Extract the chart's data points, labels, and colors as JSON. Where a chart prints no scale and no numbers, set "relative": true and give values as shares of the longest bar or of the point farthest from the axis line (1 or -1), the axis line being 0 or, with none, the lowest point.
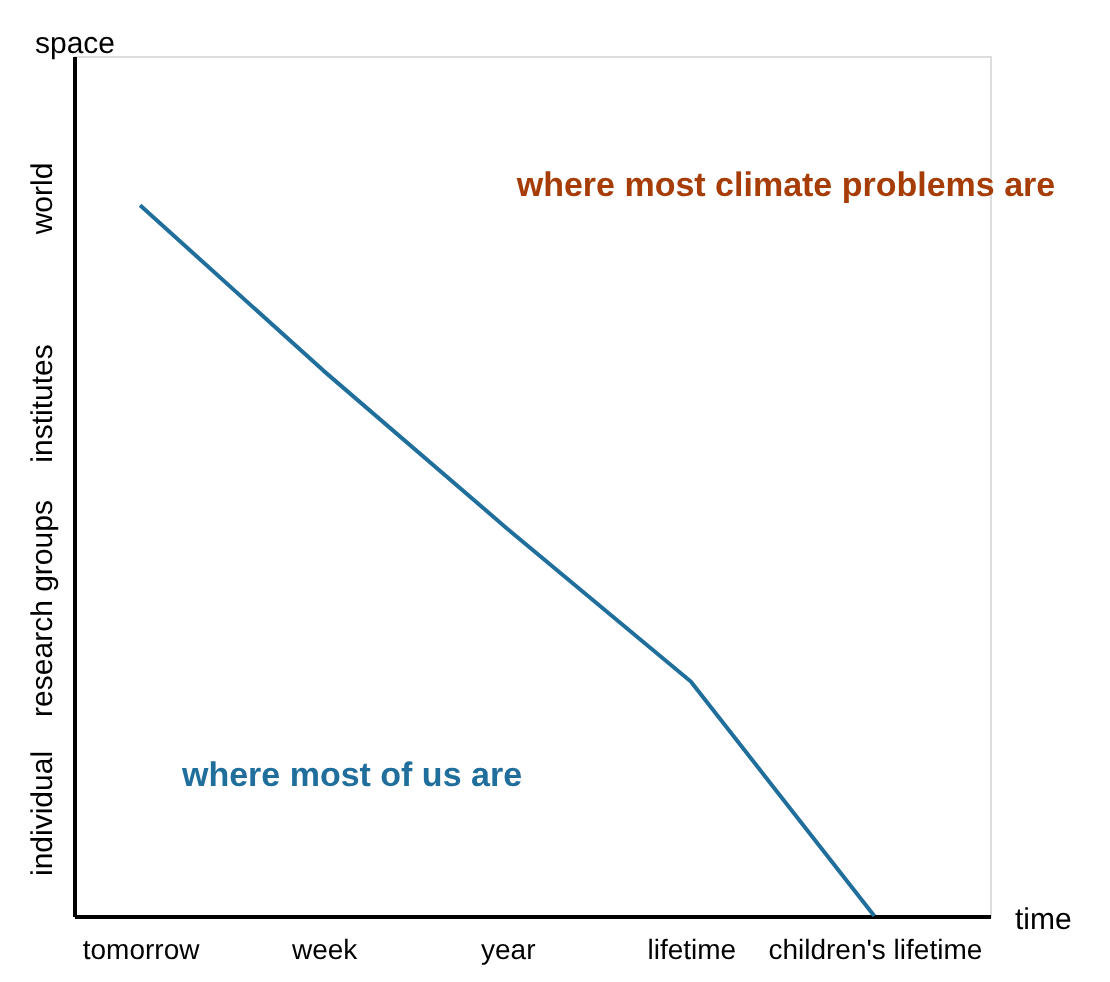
{
  "chart_data": {
    "type": "line",
    "xlabel": "time",
    "ylabel": "space",
    "relative": true,
    "categories": [
      "tomorrow",
      "week",
      "year",
      "lifetime",
      "children's lifetime"
    ],
    "y_categories": [
      "world",
      "institutes",
      "research groups",
      "individual"
    ],
    "series": [
      {
        "color": "#1f6e9c",
        "values": [
          1,
          0.767,
          0.545,
          0.33,
          0
        ]
      }
    ],
    "annotations": [
      "where most climate problems are",
      "where most of us are"
    ]
  }
}
